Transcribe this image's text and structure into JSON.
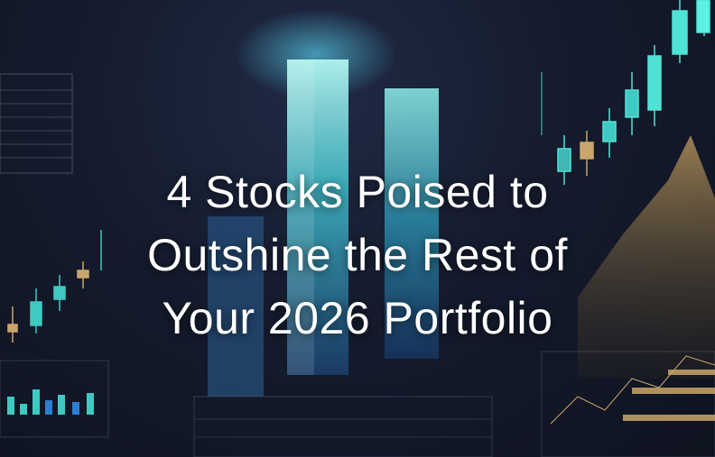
{
  "headline": {
    "lines": [
      "4 Stocks Poised to",
      "Outshine the Rest of",
      "Your 2026 Portfolio"
    ]
  },
  "colors": {
    "background": "#141a2b",
    "accent_teal": "#4fe3d6",
    "accent_gold": "#c9a66b",
    "text": "#ffffff"
  }
}
